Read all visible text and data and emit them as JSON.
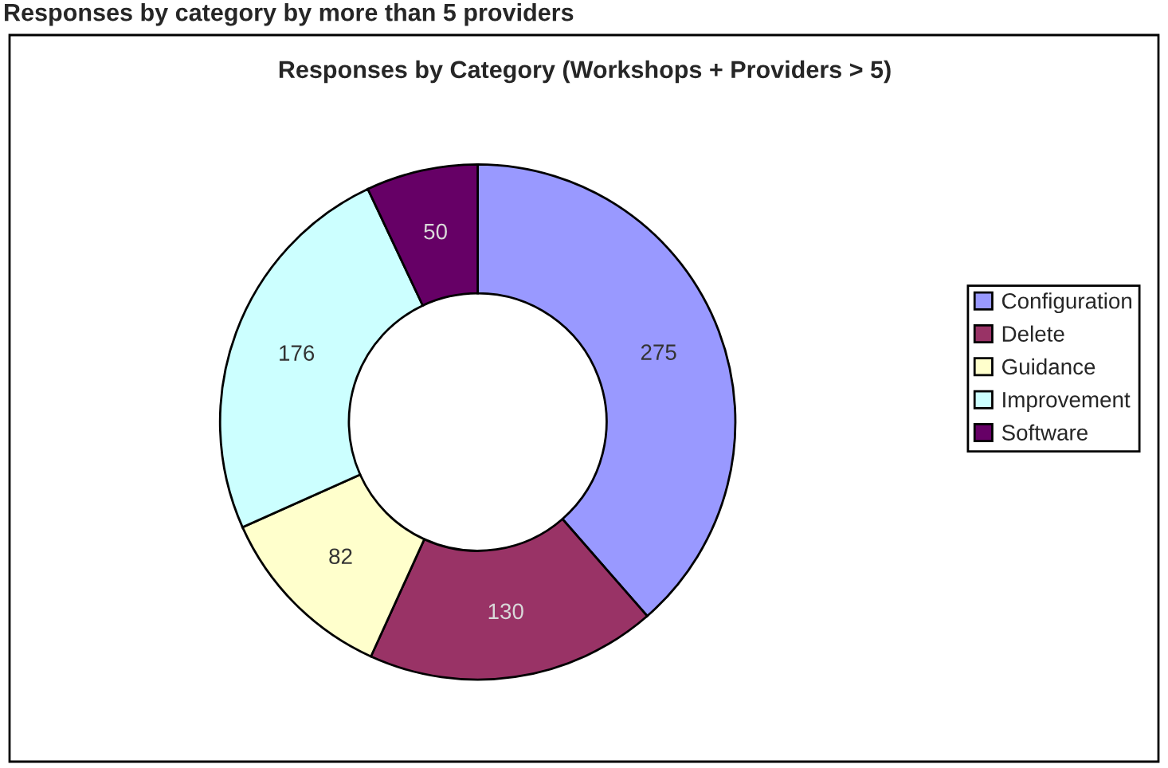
{
  "chart_data": {
    "type": "donut",
    "title": "Responses by category by more than 5 providers",
    "subtitle": "Responses by Category (Workshops + Providers > 5)",
    "categories": [
      "Configuration",
      "Delete",
      "Guidance",
      "Improvement",
      "Software"
    ],
    "values": [
      275,
      130,
      82,
      176,
      50
    ],
    "colors": [
      "#9999ff",
      "#993366",
      "#ffffcc",
      "#ccffff",
      "#660066"
    ],
    "data_labels": true,
    "legend": "right"
  }
}
